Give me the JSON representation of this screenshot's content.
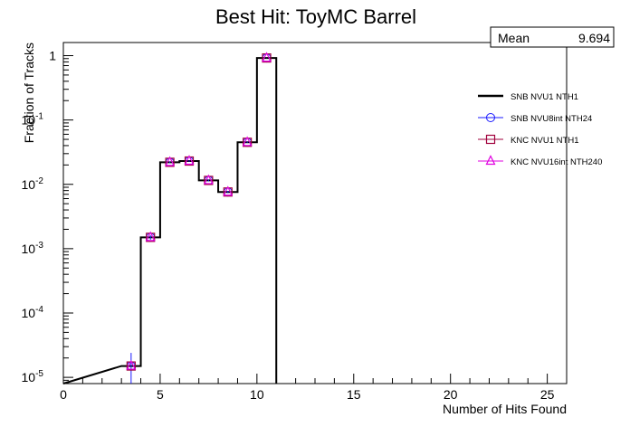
{
  "chart_data": {
    "type": "line",
    "title": "Best Hit: ToyMC Barrel",
    "xlabel": "Number of Hits Found",
    "ylabel": "Fraction of Tracks",
    "xlim": [
      0,
      26
    ],
    "ylim": [
      8e-06,
      1.6
    ],
    "yscale": "log",
    "grid": false,
    "x_ticks": [
      0,
      5,
      10,
      15,
      20,
      25
    ],
    "y_ticks": [
      {
        "value": 1,
        "base": "1",
        "exp": ""
      },
      {
        "value": 0.1,
        "base": "10",
        "exp": "-1"
      },
      {
        "value": 0.01,
        "base": "10",
        "exp": "-2"
      },
      {
        "value": 0.001,
        "base": "10",
        "exp": "-3"
      },
      {
        "value": 0.0001,
        "base": "10",
        "exp": "-4"
      },
      {
        "value": 1e-05,
        "base": "10",
        "exp": "-5"
      }
    ],
    "stats": {
      "label": "Mean",
      "value": "9.694"
    },
    "legend_position": "top-right",
    "bin_width": 1,
    "bin_centers": [
      3.5,
      4.5,
      5.5,
      6.5,
      7.5,
      8.5,
      9.5,
      10.5
    ],
    "series": [
      {
        "name": "SNB NVU1 NTH1",
        "style": "histogram",
        "marker": "none",
        "color": "#000000",
        "values": [
          1.5e-05,
          0.0015,
          0.022,
          0.023,
          0.0115,
          0.0076,
          0.045,
          0.92
        ]
      },
      {
        "name": "SNB NVU8int NTH24",
        "style": "markers",
        "marker": "circle",
        "color": "#1a1aff",
        "values": [
          1.5e-05,
          0.0015,
          0.022,
          0.023,
          0.0115,
          0.0076,
          0.045,
          0.92
        ],
        "err_low": [
          7e-06,
          0.00012,
          0.0006,
          0.0006,
          0.0004,
          0.0003,
          0.001,
          0.005
        ],
        "err_high": [
          9e-06,
          0.00012,
          0.0006,
          0.0006,
          0.0004,
          0.0003,
          0.001,
          0.005
        ]
      },
      {
        "name": "KNC NVU1 NTH1",
        "style": "markers",
        "marker": "square",
        "color": "#a0003c",
        "values": [
          1.5e-05,
          0.0015,
          0.022,
          0.023,
          0.0115,
          0.0076,
          0.045,
          0.92
        ]
      },
      {
        "name": "KNC NVU16int NTH240",
        "style": "markers",
        "marker": "triangle",
        "color": "#e000e0",
        "values": [
          1.5e-05,
          0.0015,
          0.022,
          0.023,
          0.0115,
          0.0076,
          0.045,
          0.92
        ]
      }
    ]
  }
}
